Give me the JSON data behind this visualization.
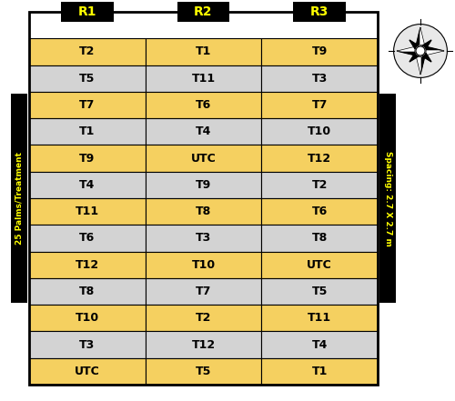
{
  "replication_headers": [
    "R1",
    "R2",
    "R3"
  ],
  "treatments": [
    [
      "T2",
      "T1",
      "T9"
    ],
    [
      "T5",
      "T11",
      "T3"
    ],
    [
      "T7",
      "T6",
      "T7"
    ],
    [
      "T1",
      "T4",
      "T10"
    ],
    [
      "T9",
      "UTC",
      "T12"
    ],
    [
      "T4",
      "T9",
      "T2"
    ],
    [
      "T11",
      "T8",
      "T6"
    ],
    [
      "T6",
      "T3",
      "T8"
    ],
    [
      "T12",
      "T10",
      "UTC"
    ],
    [
      "T8",
      "T7",
      "T5"
    ],
    [
      "T10",
      "T2",
      "T11"
    ],
    [
      "T3",
      "T12",
      "T4"
    ],
    [
      "UTC",
      "T5",
      "T1"
    ]
  ],
  "row_colors": [
    "#F5D060",
    "#D3D3D3"
  ],
  "header_bg": "#000000",
  "header_fg": "#FFFF00",
  "cell_text_color": "#000000",
  "left_label": "25 Palms/Treatment",
  "right_label": "Spacing: 2.7 X 2.7 m",
  "label_bg": "#000000",
  "label_fg": "#FFFF00",
  "table_border_color": "#000000",
  "figsize": [
    5.0,
    4.41
  ],
  "dpi": 100
}
